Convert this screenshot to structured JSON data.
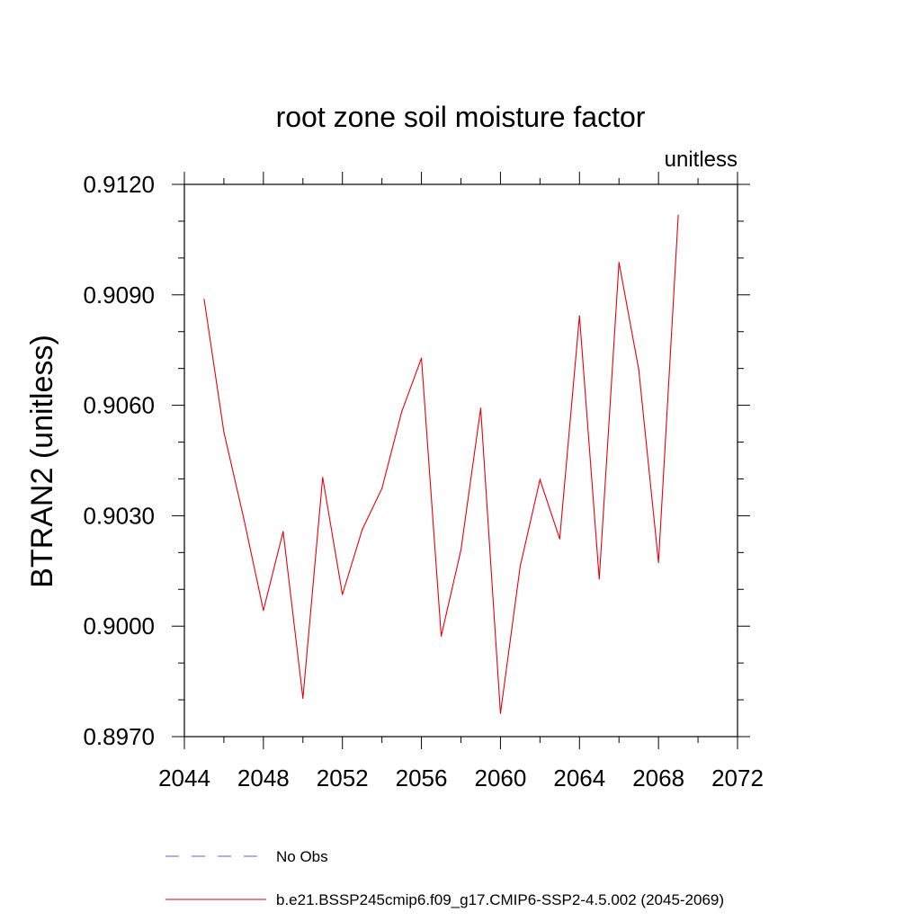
{
  "chart_data": {
    "type": "line",
    "title": "root zone soil moisture factor",
    "units_label": "unitless",
    "ylabel": "BTRAN2  (unitless)",
    "xlabel": "",
    "xlim": [
      2044,
      2072
    ],
    "ylim": [
      0.897,
      0.912
    ],
    "xticks": [
      "2044",
      "2048",
      "2052",
      "2056",
      "2060",
      "2064",
      "2068",
      "2072"
    ],
    "yticks": [
      "0.8970",
      "0.9000",
      "0.9030",
      "0.9060",
      "0.9090",
      "0.9120"
    ],
    "grid": false,
    "series": [
      {
        "name": "b.e21.BSSP245cmip6.f09_g17.CMIP6-SSP2-4.5.002 (2045-2069)",
        "color": "#e8000b",
        "dash": "solid",
        "x": [
          2045,
          2046,
          2047,
          2048,
          2049,
          2050,
          2051,
          2052,
          2053,
          2054,
          2055,
          2056,
          2057,
          2058,
          2059,
          2060,
          2061,
          2062,
          2063,
          2064,
          2065,
          2066,
          2067,
          2068,
          2069
        ],
        "y": [
          0.90888,
          0.90527,
          0.90294,
          0.90043,
          0.90257,
          0.89804,
          0.90404,
          0.90086,
          0.90262,
          0.90374,
          0.90582,
          0.90728,
          0.89973,
          0.90207,
          0.90592,
          0.89763,
          0.90163,
          0.90398,
          0.90237,
          0.90843,
          0.90128,
          0.90988,
          0.90697,
          0.90173,
          0.91116
        ]
      }
    ],
    "legend": [
      {
        "label": "No Obs",
        "color": "#6a5acd",
        "dash": "dashed"
      },
      {
        "label": "b.e21.BSSP245cmip6.f09_g17.CMIP6-SSP2-4.5.002 (2045-2069)",
        "color": "#e8000b",
        "dash": "solid"
      }
    ]
  }
}
